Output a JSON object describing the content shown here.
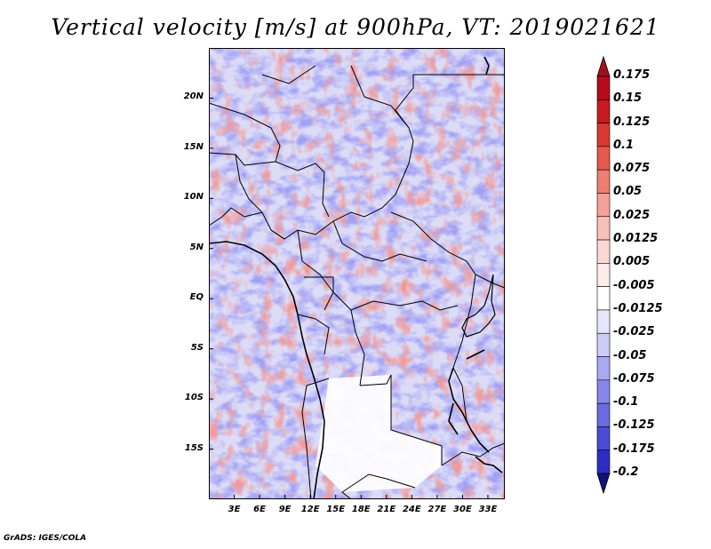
{
  "title": "Vertical velocity [m/s] at 900hPa, VT: 2019021621",
  "footer": "GrADS: IGES/COLA",
  "map": {
    "lon_range": [
      0,
      35
    ],
    "lat_range": [
      -20,
      25
    ],
    "lat_ticks": [
      {
        "value": 20,
        "label": "20N"
      },
      {
        "value": 15,
        "label": "15N"
      },
      {
        "value": 10,
        "label": "10N"
      },
      {
        "value": 5,
        "label": "5N"
      },
      {
        "value": 0,
        "label": "EQ"
      },
      {
        "value": -5,
        "label": "5S"
      },
      {
        "value": -10,
        "label": "10S"
      },
      {
        "value": -15,
        "label": "15S"
      }
    ],
    "lon_ticks": [
      {
        "value": 3,
        "label": "3E"
      },
      {
        "value": 6,
        "label": "6E"
      },
      {
        "value": 9,
        "label": "9E"
      },
      {
        "value": 12,
        "label": "12E"
      },
      {
        "value": 15,
        "label": "15E"
      },
      {
        "value": 18,
        "label": "18E"
      },
      {
        "value": 21,
        "label": "21E"
      },
      {
        "value": 24,
        "label": "24E"
      },
      {
        "value": 27,
        "label": "27E"
      },
      {
        "value": 30,
        "label": "30E"
      },
      {
        "value": 33,
        "label": "33E"
      }
    ]
  },
  "colorbar": {
    "levels": [
      {
        "label": "0.175",
        "color": "#b40c1c"
      },
      {
        "label": "0.15",
        "color": "#c8191e"
      },
      {
        "label": "0.125",
        "color": "#d83a30"
      },
      {
        "label": "0.1",
        "color": "#e55a4c"
      },
      {
        "label": "0.075",
        "color": "#ee7e72"
      },
      {
        "label": "0.05",
        "color": "#f5a098"
      },
      {
        "label": "0.025",
        "color": "#f9c0ba"
      },
      {
        "label": "0.0125",
        "color": "#fbd8d4"
      },
      {
        "label": "0.005",
        "color": "#fdecea"
      },
      {
        "label": "-0.005",
        "color": "#ffffff"
      },
      {
        "label": "-0.0125",
        "color": "#e6e6fb"
      },
      {
        "label": "-0.025",
        "color": "#ccccf7"
      },
      {
        "label": "-0.05",
        "color": "#a9a9f1"
      },
      {
        "label": "-0.075",
        "color": "#8787ea"
      },
      {
        "label": "-0.1",
        "color": "#6a6ae2"
      },
      {
        "label": "-0.125",
        "color": "#4b4bd6"
      },
      {
        "label": "-0.175",
        "color": "#2d2dc4"
      },
      {
        "label": "-0.2",
        "color": "#1a1aa8"
      }
    ],
    "top_color": "#a0101c",
    "bottom_color": "#11117e"
  }
}
